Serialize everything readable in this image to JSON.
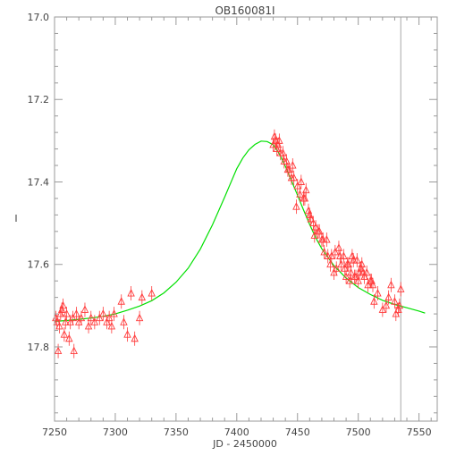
{
  "chart_data": {
    "type": "scatter",
    "title": "OB160081I",
    "xlabel": "JD - 2450000",
    "ylabel": "I",
    "xlim": [
      7250,
      7565
    ],
    "ylim": [
      17.0,
      17.98
    ],
    "y_inverted": true,
    "x_ticks": [
      "7250",
      "7300",
      "7350",
      "7400",
      "7450",
      "7500",
      "7550"
    ],
    "y_ticks": [
      "17.0",
      "17.2",
      "17.4",
      "17.6",
      "17.8"
    ],
    "vline_x": 7535,
    "colors": {
      "data": "#ff3b3b",
      "model": "#00e000",
      "axis": "#9a9a9a",
      "vline": "#a8a8a8"
    },
    "series": [
      {
        "kind": "points",
        "x": [
          7251,
          7252,
          7253,
          7254,
          7255,
          7256,
          7257,
          7258,
          7259,
          7260,
          7262,
          7263,
          7265,
          7266,
          7268,
          7270,
          7272,
          7275,
          7278,
          7280,
          7283,
          7287,
          7290,
          7293,
          7295,
          7297,
          7299,
          7305,
          7307,
          7310,
          7313,
          7316,
          7320,
          7322,
          7330,
          7430,
          7431,
          7432,
          7433,
          7434,
          7435,
          7436,
          7438,
          7439,
          7441,
          7442,
          7443,
          7445,
          7446,
          7447,
          7449,
          7450,
          7452,
          7453,
          7455,
          7456,
          7457,
          7459,
          7460,
          7461,
          7463,
          7464,
          7465,
          7467,
          7468,
          7470,
          7471,
          7472,
          7474,
          7475,
          7477,
          7478,
          7480,
          7481,
          7482,
          7484,
          7485,
          7486,
          7488,
          7489,
          7490,
          7491,
          7492,
          7493,
          7494,
          7495,
          7496,
          7497,
          7498,
          7499,
          7500,
          7501,
          7502,
          7503,
          7504,
          7505,
          7507,
          7508,
          7510,
          7511,
          7512,
          7513,
          7516,
          7520,
          7523,
          7525,
          7527,
          7530,
          7531,
          7533,
          7534,
          7535
        ],
        "y": [
          17.73,
          17.74,
          17.81,
          17.75,
          17.72,
          17.71,
          17.7,
          17.77,
          17.74,
          17.72,
          17.78,
          17.74,
          17.73,
          17.81,
          17.72,
          17.74,
          17.73,
          17.71,
          17.75,
          17.73,
          17.74,
          17.73,
          17.72,
          17.74,
          17.73,
          17.75,
          17.72,
          17.69,
          17.74,
          17.77,
          17.67,
          17.78,
          17.73,
          17.68,
          17.67,
          17.31,
          17.29,
          17.3,
          17.32,
          17.31,
          17.3,
          17.33,
          17.33,
          17.35,
          17.35,
          17.37,
          17.37,
          17.39,
          17.36,
          17.39,
          17.46,
          17.41,
          17.43,
          17.4,
          17.44,
          17.44,
          17.42,
          17.47,
          17.48,
          17.49,
          17.5,
          17.53,
          17.51,
          17.52,
          17.52,
          17.54,
          17.54,
          17.57,
          17.54,
          17.58,
          17.6,
          17.58,
          17.62,
          17.57,
          17.61,
          17.56,
          17.58,
          17.6,
          17.58,
          17.61,
          17.63,
          17.6,
          17.6,
          17.64,
          17.62,
          17.58,
          17.59,
          17.63,
          17.63,
          17.59,
          17.64,
          17.62,
          17.61,
          17.6,
          17.62,
          17.63,
          17.62,
          17.65,
          17.64,
          17.64,
          17.65,
          17.69,
          17.67,
          17.71,
          17.7,
          17.68,
          17.65,
          17.69,
          17.72,
          17.71,
          17.7,
          17.66
        ]
      },
      {
        "kind": "model",
        "x": [
          7250,
          7260,
          7270,
          7280,
          7290,
          7300,
          7310,
          7320,
          7330,
          7340,
          7350,
          7360,
          7370,
          7380,
          7390,
          7400,
          7405,
          7410,
          7415,
          7420,
          7425,
          7430,
          7435,
          7440,
          7445,
          7450,
          7455,
          7460,
          7465,
          7470,
          7480,
          7490,
          7500,
          7510,
          7520,
          7530,
          7540,
          7550,
          7555
        ],
        "y": [
          17.738,
          17.736,
          17.733,
          17.73,
          17.726,
          17.72,
          17.711,
          17.701,
          17.688,
          17.669,
          17.643,
          17.609,
          17.563,
          17.504,
          17.437,
          17.368,
          17.342,
          17.322,
          17.309,
          17.301,
          17.302,
          17.31,
          17.332,
          17.362,
          17.397,
          17.432,
          17.468,
          17.503,
          17.535,
          17.562,
          17.603,
          17.633,
          17.656,
          17.673,
          17.687,
          17.697,
          17.705,
          17.713,
          17.718
        ]
      }
    ]
  }
}
